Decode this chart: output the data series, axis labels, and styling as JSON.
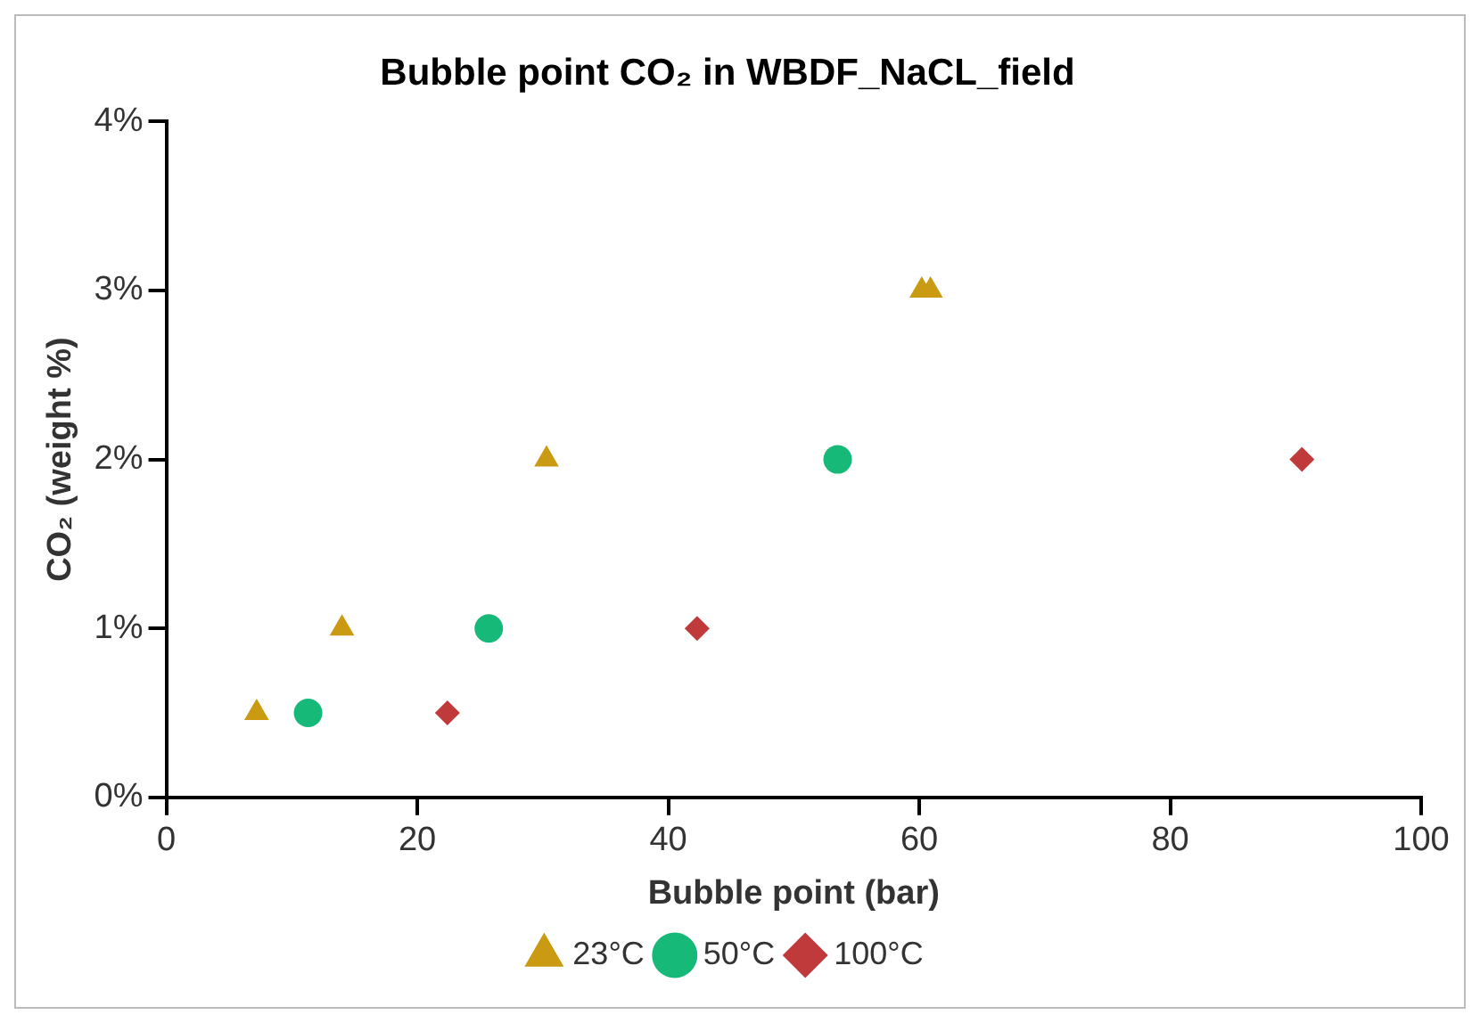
{
  "chart_data": {
    "type": "scatter",
    "title": "Bubble point CO₂ in WBDF_NaCL_field",
    "xlabel": "Bubble point (bar)",
    "ylabel": "CO₂ (weight %)",
    "xlim": [
      0,
      100
    ],
    "xticks": [
      0,
      20,
      40,
      60,
      80,
      100
    ],
    "ylim": [
      0,
      4
    ],
    "yticks": [
      {
        "value": 0,
        "label": "0%"
      },
      {
        "value": 1,
        "label": "1%"
      },
      {
        "value": 2,
        "label": "2%"
      },
      {
        "value": 3,
        "label": "3%"
      },
      {
        "value": 4,
        "label": "4%"
      }
    ],
    "grid": false,
    "legend": "bottom",
    "series": [
      {
        "name": "23°C",
        "color": "#c99a12",
        "marker": "triangle",
        "x": [
          7.2,
          14.0,
          30.3,
          60.2,
          60.9
        ],
        "values": [
          0.5,
          1,
          2,
          3,
          3
        ]
      },
      {
        "name": "50°C",
        "color": "#17b978",
        "marker": "circle",
        "x": [
          11.3,
          25.7,
          53.5
        ],
        "values": [
          0.5,
          1,
          2
        ]
      },
      {
        "name": "100°C",
        "color": "#c0393b",
        "marker": "diamond",
        "x": [
          22.4,
          42.3,
          90.5
        ],
        "values": [
          0.5,
          1,
          2
        ]
      }
    ]
  }
}
